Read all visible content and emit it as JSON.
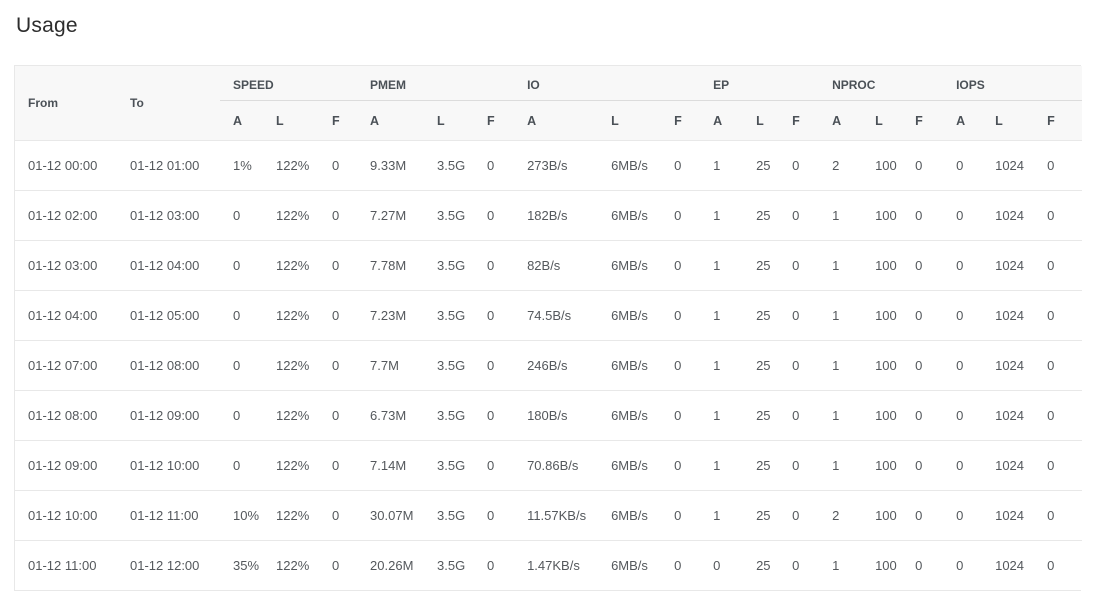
{
  "page": {
    "title": "Usage"
  },
  "colors": {
    "header_bg": "#f8f8f8",
    "header_text": "#4b5157",
    "body_text": "#54585c",
    "border": "#e8e8e8",
    "title_text": "#2d2d2d"
  },
  "table": {
    "row_header_columns": [
      {
        "key": "from",
        "label": "From"
      },
      {
        "key": "to",
        "label": "To"
      }
    ],
    "groups": [
      {
        "label": "SPEED",
        "sub": [
          "A",
          "L",
          "F"
        ]
      },
      {
        "label": "PMEM",
        "sub": [
          "A",
          "L",
          "F"
        ]
      },
      {
        "label": "IO",
        "sub": [
          "A",
          "L",
          "F"
        ]
      },
      {
        "label": "EP",
        "sub": [
          "A",
          "L",
          "F"
        ]
      },
      {
        "label": "NPROC",
        "sub": [
          "A",
          "L",
          "F"
        ]
      },
      {
        "label": "IOPS",
        "sub": [
          "A",
          "L",
          "F"
        ]
      }
    ],
    "rows": [
      [
        "01-12 00:00",
        "01-12 01:00",
        "1%",
        "122%",
        "0",
        "9.33M",
        "3.5G",
        "0",
        "273B/s",
        "6MB/s",
        "0",
        "1",
        "25",
        "0",
        "2",
        "100",
        "0",
        "0",
        "1024",
        "0"
      ],
      [
        "01-12 02:00",
        "01-12 03:00",
        "0",
        "122%",
        "0",
        "7.27M",
        "3.5G",
        "0",
        "182B/s",
        "6MB/s",
        "0",
        "1",
        "25",
        "0",
        "1",
        "100",
        "0",
        "0",
        "1024",
        "0"
      ],
      [
        "01-12 03:00",
        "01-12 04:00",
        "0",
        "122%",
        "0",
        "7.78M",
        "3.5G",
        "0",
        "82B/s",
        "6MB/s",
        "0",
        "1",
        "25",
        "0",
        "1",
        "100",
        "0",
        "0",
        "1024",
        "0"
      ],
      [
        "01-12 04:00",
        "01-12 05:00",
        "0",
        "122%",
        "0",
        "7.23M",
        "3.5G",
        "0",
        "74.5B/s",
        "6MB/s",
        "0",
        "1",
        "25",
        "0",
        "1",
        "100",
        "0",
        "0",
        "1024",
        "0"
      ],
      [
        "01-12 07:00",
        "01-12 08:00",
        "0",
        "122%",
        "0",
        "7.7M",
        "3.5G",
        "0",
        "246B/s",
        "6MB/s",
        "0",
        "1",
        "25",
        "0",
        "1",
        "100",
        "0",
        "0",
        "1024",
        "0"
      ],
      [
        "01-12 08:00",
        "01-12 09:00",
        "0",
        "122%",
        "0",
        "6.73M",
        "3.5G",
        "0",
        "180B/s",
        "6MB/s",
        "0",
        "1",
        "25",
        "0",
        "1",
        "100",
        "0",
        "0",
        "1024",
        "0"
      ],
      [
        "01-12 09:00",
        "01-12 10:00",
        "0",
        "122%",
        "0",
        "7.14M",
        "3.5G",
        "0",
        "70.86B/s",
        "6MB/s",
        "0",
        "1",
        "25",
        "0",
        "1",
        "100",
        "0",
        "0",
        "1024",
        "0"
      ],
      [
        "01-12 10:00",
        "01-12 11:00",
        "10%",
        "122%",
        "0",
        "30.07M",
        "3.5G",
        "0",
        "11.57KB/s",
        "6MB/s",
        "0",
        "1",
        "25",
        "0",
        "2",
        "100",
        "0",
        "0",
        "1024",
        "0"
      ],
      [
        "01-12 11:00",
        "01-12 12:00",
        "35%",
        "122%",
        "0",
        "20.26M",
        "3.5G",
        "0",
        "1.47KB/s",
        "6MB/s",
        "0",
        "0",
        "25",
        "0",
        "1",
        "100",
        "0",
        "0",
        "1024",
        "0"
      ]
    ]
  }
}
